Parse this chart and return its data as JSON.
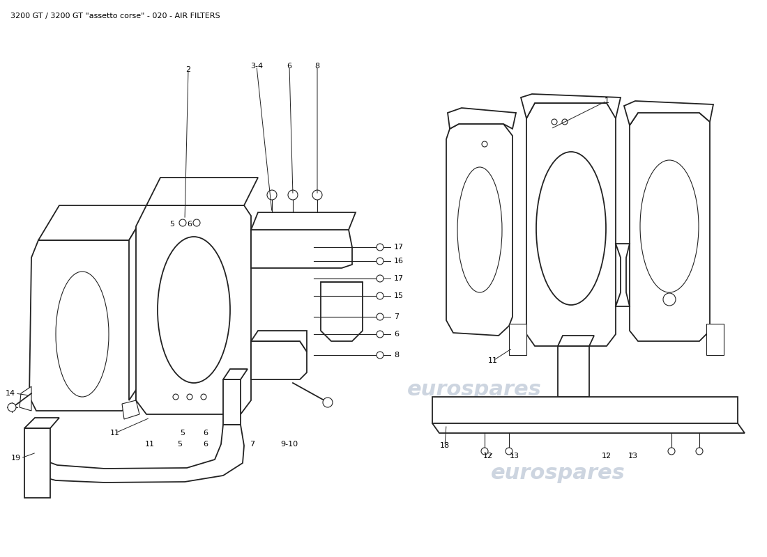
{
  "title": "3200 GT / 3200 GT \"assetto corse\" - 020 - AIR FILTERS",
  "title_fontsize": 8,
  "title_color": "#000000",
  "background_color": "#ffffff",
  "line_color": "#222222",
  "watermark_text": "eurospares",
  "watermark_color": "#cdd5e0",
  "watermark_fontsize": 22,
  "label_fontsize": 8,
  "label_color": "#000000"
}
